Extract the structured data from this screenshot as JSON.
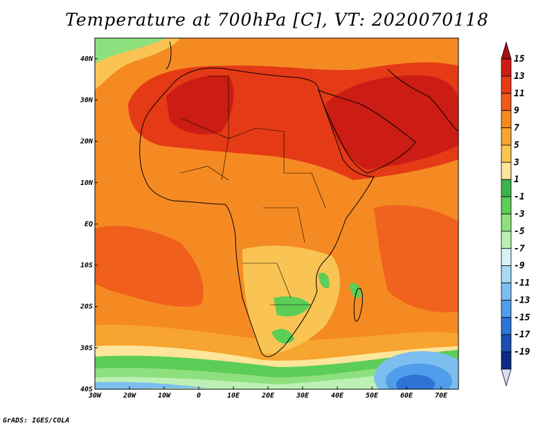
{
  "title": "Temperature at 700hPa [C], VT: 2020070118",
  "credit": "GrADS: IGES/COLA",
  "map": {
    "region": "Africa",
    "variable": "Temperature at 700hPa",
    "units": "C",
    "valid_time": "2020070118",
    "lon_range": [
      -30,
      75
    ],
    "lat_range": [
      -40,
      45
    ],
    "lon_ticks": [
      "30W",
      "20W",
      "10W",
      "0",
      "10E",
      "20E",
      "30E",
      "40E",
      "50E",
      "60E",
      "70E"
    ],
    "lat_ticks": [
      "40N",
      "30N",
      "20N",
      "10N",
      "EQ",
      "10S",
      "20S",
      "30S",
      "40S"
    ]
  },
  "colorbar": {
    "labels": [
      "15",
      "13",
      "11",
      "9",
      "7",
      "5",
      "3",
      "1",
      "-1",
      "-3",
      "-5",
      "-7",
      "-9",
      "-11",
      "-13",
      "-15",
      "-17",
      "-19"
    ],
    "colors": [
      "#a50f15",
      "#cb1d13",
      "#e43a16",
      "#ef5a1c",
      "#f58a22",
      "#f7a430",
      "#f9c453",
      "#fde59a",
      "#3cb44b",
      "#5ccd57",
      "#8ee07e",
      "#bdf0b4",
      "#d8f3f7",
      "#a9daf4",
      "#7dbef0",
      "#509ee9",
      "#2d74d6",
      "#1b4fb2",
      "#0b2b86",
      "#d8def8"
    ]
  }
}
